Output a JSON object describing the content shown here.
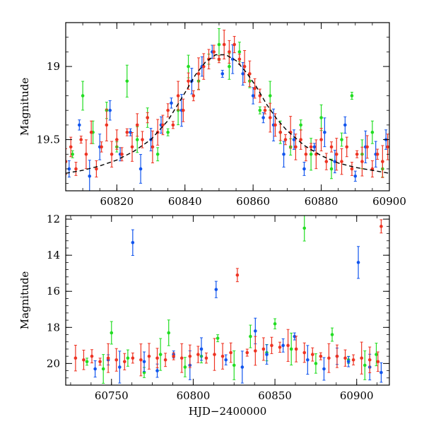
{
  "chart_data": [
    {
      "id": "top",
      "type": "scatter",
      "xlabel": "",
      "ylabel": "Magnitude",
      "xlim": [
        60805,
        60900
      ],
      "ylim": [
        19.85,
        18.7
      ],
      "y_inverted": true,
      "xticks": [
        "60820",
        "60840",
        "60860",
        "60880",
        "60900"
      ],
      "xtick_values": [
        60820,
        60840,
        60860,
        60880,
        60900
      ],
      "yticks": [
        "19",
        "19.5"
      ],
      "ytick_values": [
        19,
        19.5
      ],
      "model_curve": {
        "color": "#000000",
        "x": [
          60805,
          60810,
          60815,
          60820,
          60825,
          60830,
          60835,
          60840,
          60843,
          60846,
          60849,
          60852,
          60855,
          60858,
          60861,
          60864,
          60867,
          60870,
          60875,
          60880,
          60885,
          60890,
          60895,
          60900
        ],
        "y": [
          19.73,
          19.71,
          19.68,
          19.64,
          19.58,
          19.5,
          19.37,
          19.18,
          19.06,
          18.97,
          18.92,
          18.92,
          18.96,
          19.04,
          19.14,
          19.26,
          19.36,
          19.44,
          19.54,
          19.61,
          19.66,
          19.69,
          19.71,
          19.73
        ]
      },
      "series": [
        {
          "color": "#22dd22",
          "points": [
            [
              60807,
              19.6
            ],
            [
              60810,
              19.2
            ],
            [
              60813,
              19.45
            ],
            [
              60817,
              19.3
            ],
            [
              60820,
              19.55
            ],
            [
              60823,
              19.1
            ],
            [
              60826,
              19.5
            ],
            [
              60829,
              19.35
            ],
            [
              60832,
              19.6
            ],
            [
              60835,
              19.45
            ],
            [
              60838,
              19.3
            ],
            [
              60841,
              19.0
            ],
            [
              60844,
              19.1
            ],
            [
              60847,
              18.95
            ],
            [
              60850,
              18.85
            ],
            [
              60853,
              19.0
            ],
            [
              60856,
              18.9
            ],
            [
              60859,
              19.1
            ],
            [
              60862,
              19.3
            ],
            [
              60865,
              19.2
            ],
            [
              60868,
              19.45
            ],
            [
              60871,
              19.55
            ],
            [
              60874,
              19.4
            ],
            [
              60877,
              19.6
            ],
            [
              60880,
              19.35
            ],
            [
              60883,
              19.7
            ],
            [
              60886,
              19.5
            ],
            [
              60889,
              19.2
            ],
            [
              60892,
              19.6
            ],
            [
              60895,
              19.45
            ],
            [
              60898,
              19.7
            ]
          ]
        },
        {
          "color": "#1155ee",
          "points": [
            [
              60806,
              19.7
            ],
            [
              60809,
              19.4
            ],
            [
              60812,
              19.75
            ],
            [
              60815,
              19.55
            ],
            [
              60818,
              19.3
            ],
            [
              60821,
              19.6
            ],
            [
              60824,
              19.45
            ],
            [
              60827,
              19.7
            ],
            [
              60830,
              19.5
            ],
            [
              60833,
              19.4
            ],
            [
              60836,
              19.25
            ],
            [
              60839,
              19.3
            ],
            [
              60842,
              19.1
            ],
            [
              60845,
              19.0
            ],
            [
              60848,
              18.9
            ],
            [
              60851,
              19.05
            ],
            [
              60854,
              18.95
            ],
            [
              60857,
              19.05
            ],
            [
              60860,
              19.2
            ],
            [
              60863,
              19.35
            ],
            [
              60866,
              19.4
            ],
            [
              60869,
              19.6
            ],
            [
              60872,
              19.5
            ],
            [
              60875,
              19.7
            ],
            [
              60878,
              19.55
            ],
            [
              60881,
              19.45
            ],
            [
              60884,
              19.65
            ],
            [
              60887,
              19.4
            ],
            [
              60890,
              19.75
            ],
            [
              60893,
              19.55
            ],
            [
              60896,
              19.6
            ],
            [
              60899,
              19.5
            ]
          ]
        },
        {
          "color": "#ee3322",
          "points": [
            [
              60805,
              19.65
            ],
            [
              60806.5,
              19.55
            ],
            [
              60808,
              19.7
            ],
            [
              60809.5,
              19.5
            ],
            [
              60811,
              19.6
            ],
            [
              60812.5,
              19.45
            ],
            [
              60814,
              19.7
            ],
            [
              60815.5,
              19.55
            ],
            [
              60817,
              19.4
            ],
            [
              60818.5,
              19.6
            ],
            [
              60820,
              19.5
            ],
            [
              60821.5,
              19.6
            ],
            [
              60823,
              19.45
            ],
            [
              60824.5,
              19.55
            ],
            [
              60826,
              19.4
            ],
            [
              60827.5,
              19.5
            ],
            [
              60829,
              19.35
            ],
            [
              60830.5,
              19.55
            ],
            [
              60832,
              19.45
            ],
            [
              60833.5,
              19.4
            ],
            [
              60835,
              19.3
            ],
            [
              60836.5,
              19.4
            ],
            [
              60838,
              19.2
            ],
            [
              60839.5,
              19.3
            ],
            [
              60841,
              19.1
            ],
            [
              60842.5,
              19.2
            ],
            [
              60844,
              19.05
            ],
            [
              60845.5,
              19.0
            ],
            [
              60847,
              18.95
            ],
            [
              60848.5,
              18.9
            ],
            [
              60850,
              18.95
            ],
            [
              60851.5,
              18.85
            ],
            [
              60853,
              18.9
            ],
            [
              60854.5,
              18.85
            ],
            [
              60856,
              18.95
            ],
            [
              60857.5,
              19.0
            ],
            [
              60859,
              19.05
            ],
            [
              60860.5,
              19.15
            ],
            [
              60862,
              19.2
            ],
            [
              60863.5,
              19.3
            ],
            [
              60865,
              19.35
            ],
            [
              60866.5,
              19.4
            ],
            [
              60868,
              19.45
            ],
            [
              60869.5,
              19.5
            ],
            [
              60871,
              19.45
            ],
            [
              60872.5,
              19.55
            ],
            [
              60874,
              19.5
            ],
            [
              60875.5,
              19.6
            ],
            [
              60877,
              19.55
            ],
            [
              60878.5,
              19.6
            ],
            [
              60880,
              19.5
            ],
            [
              60881.5,
              19.65
            ],
            [
              60883,
              19.55
            ],
            [
              60884.5,
              19.6
            ],
            [
              60886,
              19.65
            ],
            [
              60887.5,
              19.55
            ],
            [
              60889,
              19.7
            ],
            [
              60890.5,
              19.6
            ],
            [
              60892,
              19.65
            ],
            [
              60893.5,
              19.55
            ],
            [
              60895,
              19.7
            ],
            [
              60896.5,
              19.6
            ],
            [
              60898,
              19.65
            ],
            [
              60899.5,
              19.55
            ]
          ]
        }
      ]
    },
    {
      "id": "bottom",
      "type": "scatter",
      "xlabel": "HJD−2400000",
      "ylabel": "Magnitude",
      "xlim": [
        60722,
        60920
      ],
      "ylim": [
        21.2,
        11.8
      ],
      "y_inverted": true,
      "xticks": [
        "60750",
        "60800",
        "60850",
        "60900"
      ],
      "xtick_values": [
        60750,
        60800,
        60850,
        60900
      ],
      "yticks": [
        "12",
        "14",
        "16",
        "18",
        "20"
      ],
      "ytick_values": [
        12,
        14,
        16,
        18,
        20
      ],
      "series": [
        {
          "color": "#22dd22",
          "points": [
            [
              60735,
              19.9
            ],
            [
              60745,
              20.3
            ],
            [
              60750,
              18.3
            ],
            [
              60760,
              19.7
            ],
            [
              60770,
              20.5
            ],
            [
              60780,
              19.5
            ],
            [
              60785,
              18.3
            ],
            [
              60795,
              20.2
            ],
            [
              60805,
              19.6
            ],
            [
              60815,
              18.6
            ],
            [
              60825,
              20.1
            ],
            [
              60835,
              18.5
            ],
            [
              60845,
              19.4
            ],
            [
              60850,
              17.8
            ],
            [
              60860,
              19.2
            ],
            [
              60868,
              12.5
            ],
            [
              60875,
              20.0
            ],
            [
              60885,
              18.4
            ],
            [
              60895,
              19.8
            ],
            [
              60905,
              20.1
            ],
            [
              60912,
              19.5
            ]
          ]
        },
        {
          "color": "#1155ee",
          "points": [
            [
              60740,
              20.3
            ],
            [
              60748,
              19.8
            ],
            [
              60755,
              20.2
            ],
            [
              60763,
              13.3
            ],
            [
              60770,
              19.9
            ],
            [
              60778,
              20.4
            ],
            [
              60788,
              19.5
            ],
            [
              60798,
              20.1
            ],
            [
              60805,
              19.2
            ],
            [
              60814,
              15.9
            ],
            [
              60820,
              19.8
            ],
            [
              60830,
              20.2
            ],
            [
              60838,
              18.2
            ],
            [
              60845,
              19.5
            ],
            [
              60855,
              19.0
            ],
            [
              60862,
              18.5
            ],
            [
              60870,
              19.8
            ],
            [
              60880,
              20.3
            ],
            [
              60888,
              19.6
            ],
            [
              60895,
              19.9
            ],
            [
              60901,
              14.4
            ],
            [
              60908,
              20.2
            ],
            [
              60915,
              20.5
            ]
          ]
        },
        {
          "color": "#ee3322",
          "points": [
            [
              60728,
              19.7
            ],
            [
              60733,
              19.8
            ],
            [
              60738,
              19.6
            ],
            [
              60743,
              19.9
            ],
            [
              60748,
              19.7
            ],
            [
              60753,
              19.8
            ],
            [
              60758,
              19.9
            ],
            [
              60763,
              19.7
            ],
            [
              60768,
              19.8
            ],
            [
              60773,
              19.6
            ],
            [
              60778,
              19.7
            ],
            [
              60783,
              19.8
            ],
            [
              60788,
              19.6
            ],
            [
              60793,
              19.7
            ],
            [
              60798,
              19.6
            ],
            [
              60803,
              19.5
            ],
            [
              60808,
              19.7
            ],
            [
              60813,
              19.5
            ],
            [
              60818,
              19.6
            ],
            [
              60823,
              19.4
            ],
            [
              60827,
              15.1
            ],
            [
              60833,
              19.4
            ],
            [
              60838,
              19.3
            ],
            [
              60843,
              19.2
            ],
            [
              60848,
              19.0
            ],
            [
              60853,
              19.1
            ],
            [
              60858,
              19.0
            ],
            [
              60863,
              19.2
            ],
            [
              60868,
              19.4
            ],
            [
              60873,
              19.5
            ],
            [
              60878,
              19.6
            ],
            [
              60883,
              19.7
            ],
            [
              60888,
              19.6
            ],
            [
              60893,
              19.7
            ],
            [
              60898,
              19.8
            ],
            [
              60903,
              19.7
            ],
            [
              60908,
              19.8
            ],
            [
              60913,
              19.9
            ],
            [
              60915,
              12.4
            ]
          ]
        }
      ]
    }
  ]
}
